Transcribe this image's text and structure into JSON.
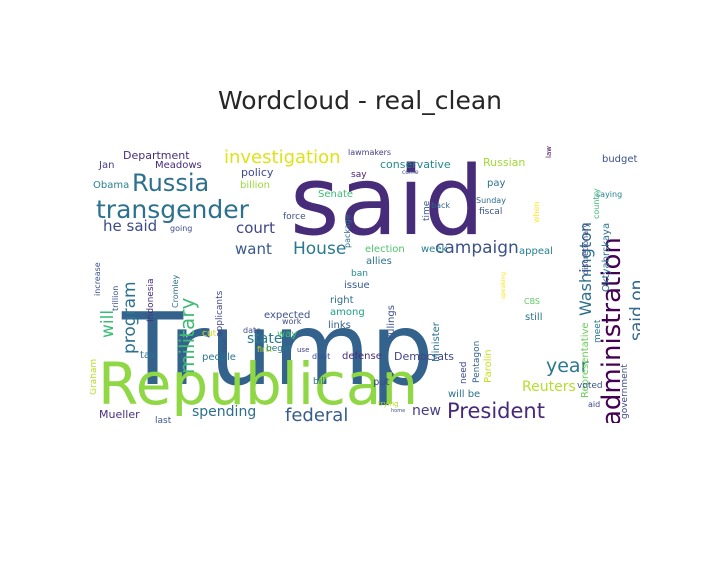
{
  "chart_data": {
    "type": "wordcloud",
    "title": "Wordcloud - real_clean",
    "background": "#ffffff",
    "colormap": "viridis",
    "words": [
      {
        "text": "Trump",
        "size": 100,
        "color": "#33638d",
        "rotate": 0
      },
      {
        "text": "said",
        "size": 95,
        "color": "#472c7a",
        "rotate": 0
      },
      {
        "text": "Republican",
        "size": 58,
        "color": "#8fd744",
        "rotate": 0
      },
      {
        "text": "administration",
        "size": 26,
        "color": "#440154",
        "rotate": -90
      },
      {
        "text": "transgender",
        "size": 25,
        "color": "#2d718e",
        "rotate": 0
      },
      {
        "text": "Russia",
        "size": 24,
        "color": "#2d718e",
        "rotate": 0
      },
      {
        "text": "President",
        "size": 21,
        "color": "#482878",
        "rotate": 0
      },
      {
        "text": "military",
        "size": 20,
        "color": "#3fbc73",
        "rotate": -90
      },
      {
        "text": "investigation",
        "size": 18,
        "color": "#dde318",
        "rotate": 0
      },
      {
        "text": "Washington",
        "size": 16,
        "color": "#2d708e",
        "rotate": -90
      },
      {
        "text": "campaign",
        "size": 17,
        "color": "#3b528b",
        "rotate": 0
      },
      {
        "text": "year",
        "size": 19,
        "color": "#2a788e",
        "rotate": 0
      },
      {
        "text": "federal",
        "size": 18,
        "color": "#375b8d",
        "rotate": 0
      },
      {
        "text": "House",
        "size": 17,
        "color": "#29798e",
        "rotate": 0
      },
      {
        "text": "program",
        "size": 17,
        "color": "#2d718e",
        "rotate": -90
      },
      {
        "text": "said on",
        "size": 17,
        "color": "#31688e",
        "rotate": -90
      },
      {
        "text": "will",
        "size": 17,
        "color": "#3bbb75",
        "rotate": -90
      },
      {
        "text": "court",
        "size": 15,
        "color": "#404688",
        "rotate": 0
      },
      {
        "text": "want",
        "size": 15,
        "color": "#38598c",
        "rotate": 0
      },
      {
        "text": "he said",
        "size": 15,
        "color": "#3e4989",
        "rotate": 0
      },
      {
        "text": "state",
        "size": 14,
        "color": "#287c8e",
        "rotate": 0
      },
      {
        "text": "spending",
        "size": 14,
        "color": "#2e6e8e",
        "rotate": 0
      },
      {
        "text": "Reuters",
        "size": 14,
        "color": "#b5de2b",
        "rotate": 0
      },
      {
        "text": "new",
        "size": 14,
        "color": "#433e85",
        "rotate": 0
      },
      {
        "text": "Russian",
        "size": 11,
        "color": "#a0da39",
        "rotate": 0
      },
      {
        "text": "conservative",
        "size": 11,
        "color": "#238a8d",
        "rotate": 0
      },
      {
        "text": "Department",
        "size": 11,
        "color": "#472d7b",
        "rotate": 0
      },
      {
        "text": "Mueller",
        "size": 11,
        "color": "#472f7d",
        "rotate": 0
      },
      {
        "text": "Democrats",
        "size": 11,
        "color": "#414487",
        "rotate": 0
      },
      {
        "text": "Representative",
        "size": 10,
        "color": "#6ccd5a",
        "rotate": -90
      },
      {
        "text": "Oktyabrskaya",
        "size": 10,
        "color": "#2c728e",
        "rotate": -90
      },
      {
        "text": "budget",
        "size": 10,
        "color": "#3b528b",
        "rotate": 0
      },
      {
        "text": "policy",
        "size": 11,
        "color": "#3f4889",
        "rotate": 0
      },
      {
        "text": "billion",
        "size": 10,
        "color": "#9bd93c",
        "rotate": 0
      },
      {
        "text": "Meadows",
        "size": 10,
        "color": "#472a7a",
        "rotate": 0
      },
      {
        "text": "Jan",
        "size": 10,
        "color": "#424086",
        "rotate": 0
      },
      {
        "text": "Obama",
        "size": 10,
        "color": "#26828e",
        "rotate": 0
      },
      {
        "text": "Senate",
        "size": 10,
        "color": "#3dbc74",
        "rotate": 0
      },
      {
        "text": "force",
        "size": 9,
        "color": "#3c4f8a",
        "rotate": 0
      },
      {
        "text": "election",
        "size": 10,
        "color": "#4ec36b",
        "rotate": 0
      },
      {
        "text": "allies",
        "size": 10,
        "color": "#2c738e",
        "rotate": 0
      },
      {
        "text": "week",
        "size": 10,
        "color": "#27808e",
        "rotate": 0
      },
      {
        "text": "pay",
        "size": 10,
        "color": "#2e6f8e",
        "rotate": 0
      },
      {
        "text": "appeal",
        "size": 10,
        "color": "#277f8e",
        "rotate": 0
      },
      {
        "text": "fiscal",
        "size": 9,
        "color": "#3a548c",
        "rotate": 0
      },
      {
        "text": "Sunday",
        "size": 8,
        "color": "#30698e",
        "rotate": 0
      },
      {
        "text": "back",
        "size": 8,
        "color": "#31678e",
        "rotate": 0
      },
      {
        "text": "saying",
        "size": 8,
        "color": "#26818e",
        "rotate": 0
      },
      {
        "text": "time",
        "size": 9,
        "color": "#375a8c",
        "rotate": -90
      },
      {
        "text": "country",
        "size": 8,
        "color": "#3cbb75",
        "rotate": -90
      },
      {
        "text": "discretionary",
        "size": 8,
        "color": "#433d84",
        "rotate": -90
      },
      {
        "text": "when",
        "size": 8,
        "color": "#fde725",
        "rotate": -90
      },
      {
        "text": "government",
        "size": 9,
        "color": "#3e4a89",
        "rotate": -90
      },
      {
        "text": "meet",
        "size": 9,
        "color": "#297a8e",
        "rotate": -90
      },
      {
        "text": "voted",
        "size": 9,
        "color": "#39558c",
        "rotate": 0
      },
      {
        "text": "still",
        "size": 10,
        "color": "#2b748e",
        "rotate": 0
      },
      {
        "text": "aid",
        "size": 8,
        "color": "#3f4788",
        "rotate": 0
      },
      {
        "text": "CBS",
        "size": 8,
        "color": "#5ec962",
        "rotate": 0
      },
      {
        "text": "lawmakers",
        "size": 8,
        "color": "#424186",
        "rotate": 0
      },
      {
        "text": "say",
        "size": 9,
        "color": "#482071",
        "rotate": 0
      },
      {
        "text": "come",
        "size": 6,
        "color": "#3b528b",
        "rotate": 0
      },
      {
        "text": "law",
        "size": 7,
        "color": "#440154",
        "rotate": -90
      },
      {
        "text": "package",
        "size": 8,
        "color": "#2e6d8e",
        "rotate": -90
      },
      {
        "text": "ban",
        "size": 9,
        "color": "#218f8d",
        "rotate": 0
      },
      {
        "text": "issue",
        "size": 10,
        "color": "#375b8d",
        "rotate": 0
      },
      {
        "text": "right",
        "size": 10,
        "color": "#2f6c8e",
        "rotate": 0
      },
      {
        "text": "among",
        "size": 10,
        "color": "#1fa188",
        "rotate": 0
      },
      {
        "text": "links",
        "size": 10,
        "color": "#33638d",
        "rotate": 0
      },
      {
        "text": "rulings",
        "size": 10,
        "color": "#3c508b",
        "rotate": -90
      },
      {
        "text": "Minister",
        "size": 10,
        "color": "#2c718e",
        "rotate": -90
      },
      {
        "text": "Parolin",
        "size": 10,
        "color": "#c8e020",
        "rotate": -90
      },
      {
        "text": "Pentagon",
        "size": 9,
        "color": "#33638d",
        "rotate": -90
      },
      {
        "text": "need",
        "size": 9,
        "color": "#3f4889",
        "rotate": -90
      },
      {
        "text": "defense",
        "size": 10,
        "color": "#472c7a",
        "rotate": 0
      },
      {
        "text": "debt",
        "size": 8,
        "color": "#3a538b",
        "rotate": 0
      },
      {
        "text": "will be",
        "size": 10,
        "color": "#2c728e",
        "rotate": 0
      },
      {
        "text": "put",
        "size": 10,
        "color": "#3e4a89",
        "rotate": 0
      },
      {
        "text": "trying",
        "size": 7,
        "color": "#b8de29",
        "rotate": 0
      },
      {
        "text": "home",
        "size": 5,
        "color": "#3b528b",
        "rotate": 0
      },
      {
        "text": "bill",
        "size": 9,
        "color": "#2c728e",
        "rotate": 0
      },
      {
        "text": "first",
        "size": 8,
        "color": "#c2df23",
        "rotate": 0
      },
      {
        "text": "people",
        "size": 10,
        "color": "#2c728e",
        "rotate": 0
      },
      {
        "text": "tax",
        "size": 10,
        "color": "#2d718e",
        "rotate": 0
      },
      {
        "text": "cut",
        "size": 9,
        "color": "#d8e219",
        "rotate": 0
      },
      {
        "text": "last",
        "size": 9,
        "color": "#39558c",
        "rotate": 0
      },
      {
        "text": "Graham",
        "size": 9,
        "color": "#b5de2b",
        "rotate": -90
      },
      {
        "text": "expected",
        "size": 10,
        "color": "#3b528b",
        "rotate": 0
      },
      {
        "text": "way",
        "size": 10,
        "color": "#45be71",
        "rotate": 0
      },
      {
        "text": "begin",
        "size": 9,
        "color": "#2a778e",
        "rotate": 0
      },
      {
        "text": "use",
        "size": 7,
        "color": "#424086",
        "rotate": 0
      },
      {
        "text": "work",
        "size": 8,
        "color": "#3d4d8a",
        "rotate": 0
      },
      {
        "text": "date",
        "size": 8,
        "color": "#3c4f8a",
        "rotate": 0
      },
      {
        "text": "one",
        "size": 7,
        "color": "#3b518b",
        "rotate": -90
      },
      {
        "text": "applicants",
        "size": 9,
        "color": "#3e4989",
        "rotate": -90
      },
      {
        "text": "Indonesia",
        "size": 9,
        "color": "#472d7b",
        "rotate": -90
      },
      {
        "text": "Cromley",
        "size": 8,
        "color": "#2d708e",
        "rotate": -90
      },
      {
        "text": "trillion",
        "size": 8,
        "color": "#3a548c",
        "rotate": -90
      },
      {
        "text": "increase",
        "size": 8,
        "color": "#3b518b",
        "rotate": -90
      },
      {
        "text": "going",
        "size": 8,
        "color": "#3e4a89",
        "rotate": 0
      },
      {
        "text": "speaking",
        "size": 6,
        "color": "#fde725",
        "rotate": -90
      }
    ]
  }
}
